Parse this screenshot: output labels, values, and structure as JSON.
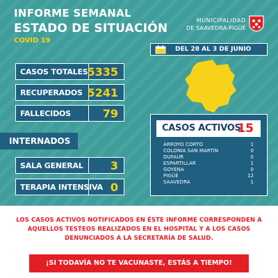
{
  "header": {
    "line1": "INFORME SEMANAL",
    "line2": "ESTADO DE SITUACIÓN",
    "line3": "COVID 19"
  },
  "municipality": {
    "line1": "MUNICIPALIDAD",
    "prefix": "DE",
    "line2": "SAAVEDRA-PIGÜÉ"
  },
  "stats": [
    {
      "label": "CASOS TOTALES",
      "value": "5335"
    },
    {
      "label": "RECUPERADOS",
      "value": "5241"
    },
    {
      "label": "FALLECIDOS",
      "value": "79"
    }
  ],
  "internados": {
    "title": "INTERNADOS",
    "rows": [
      {
        "label": "SALA GENERAL",
        "value": "3"
      },
      {
        "label": "TERAPIA INTENSIVA",
        "value": "0"
      }
    ]
  },
  "period": "DEL 28 AL 3 DE JUNIO",
  "active": {
    "label": "CASOS ACTIVOS",
    "value": "15",
    "localities": [
      {
        "name": "ARROYO CORTO",
        "value": "1"
      },
      {
        "name": "COLONIA SAN MARTÍN",
        "value": "0"
      },
      {
        "name": "DUFAUR",
        "value": "0"
      },
      {
        "name": "ESPARTILLAR",
        "value": "1"
      },
      {
        "name": "GOYENA",
        "value": "0"
      },
      {
        "name": "PIGÜÉ",
        "value": "12"
      },
      {
        "name": "SAAVEDRA",
        "value": "1"
      }
    ]
  },
  "notice": "LOS CASOS ACTIVOS NOTIFICADOS EN ÉSTE INFORME CORRESPONDEN A AQUELLOS TESTEOS REALIZADOS EN EL HOSPITAL Y A LOS CASOS DENUNCIADOS A LA SECRETARÍA DE SALUD.",
  "cta": "¡SI TODAVÍA NO TE VACUNASTE, ESTÁS A TIEMPO!",
  "colors": {
    "teal": "#3f9e9b",
    "navy": "#1f5f80",
    "yellow": "#f7d21a",
    "red": "#e31e24"
  },
  "icons": {
    "calendar": "calendar-icon",
    "logo": "municipality-logo"
  }
}
